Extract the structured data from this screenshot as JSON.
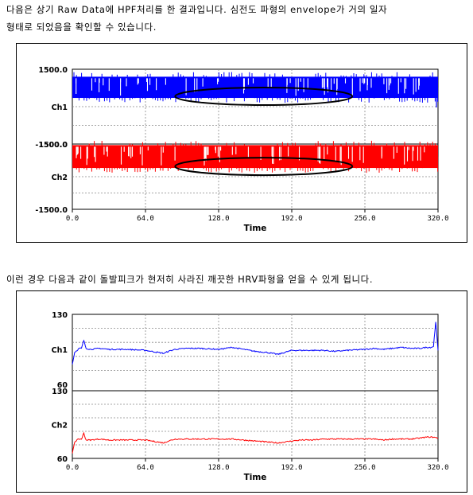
{
  "text": {
    "para1_line1": "다음은 상기 Raw Data에 HPF처리를 한 결과입니다. 심전도 파형의 envelope가 거의 일자",
    "para1_line2": "형태로 되었음을 확인할 수 있습니다.",
    "para2": "이런 경우 다음과 같이 돌발피크가 현저히 사라진 깨끗한 HRV파형을 얻을 수 있게 됩니다."
  },
  "chart_data": [
    {
      "type": "line",
      "xlabel": "Time",
      "xlim": [
        0,
        320
      ],
      "x_ticks": [
        "0.0",
        "64.0",
        "128.0",
        "192.0",
        "256.0",
        "320.0"
      ],
      "channels": [
        {
          "name": "Ch1",
          "color": "#0000ff",
          "ymax_label": "1500.0",
          "ymin_label": "-1500.0",
          "ylim": [
            -1500,
            1500
          ],
          "band": [
            350,
            1200
          ]
        },
        {
          "name": "Ch2",
          "color": "#ff0000",
          "ymax_label": "1500.0",
          "ymin_label": "-1500.0",
          "ylim": [
            -1500,
            1500
          ],
          "band": [
            400,
            1450
          ]
        }
      ],
      "annotations": "black ellipses around central section of each channel, x approx 90 to 245"
    },
    {
      "type": "line",
      "xlabel": "Time",
      "xlim": [
        0,
        320
      ],
      "x_ticks": [
        "0.0",
        "64.0",
        "128.0",
        "192.0",
        "256.0",
        "320.0"
      ],
      "channels": [
        {
          "name": "Ch1",
          "color": "#0000ff",
          "ymax_label": "130",
          "ymin_label": "60",
          "ylim": [
            60,
            130
          ],
          "x": [
            0,
            2,
            4,
            6,
            8,
            10,
            12,
            16,
            24,
            32,
            48,
            64,
            80,
            84,
            90,
            100,
            112,
            128,
            140,
            150,
            160,
            170,
            180,
            192,
            200,
            210,
            220,
            230,
            240,
            256,
            264,
            272,
            280,
            288,
            296,
            304,
            310,
            314,
            316,
            318,
            320
          ],
          "y": [
            80,
            92,
            94,
            96,
            96,
            104,
            96,
            95,
            96,
            95,
            95,
            94,
            91,
            93,
            95,
            96,
            96,
            95,
            97,
            95,
            93,
            92,
            90,
            94,
            94,
            94,
            94,
            93,
            94,
            95,
            96,
            95,
            96,
            97,
            96,
            96,
            97,
            97,
            98,
            123,
            94
          ]
        },
        {
          "name": "Ch2",
          "color": "#ff0000",
          "ymax_label": "130",
          "ymin_label": "60",
          "ylim": [
            60,
            130
          ],
          "x": [
            0,
            2,
            4,
            6,
            8,
            10,
            12,
            16,
            24,
            32,
            48,
            64,
            80,
            84,
            90,
            100,
            112,
            128,
            140,
            150,
            160,
            170,
            180,
            192,
            200,
            210,
            220,
            230,
            240,
            256,
            264,
            272,
            280,
            288,
            296,
            304,
            310,
            316,
            320
          ],
          "y": [
            65,
            77,
            79,
            80,
            80,
            86,
            79,
            79,
            80,
            79,
            79,
            79,
            76,
            78,
            80,
            80,
            80,
            80,
            80,
            79,
            78,
            77,
            76,
            78,
            79,
            79,
            80,
            80,
            80,
            80,
            80,
            79,
            80,
            80,
            80,
            81,
            82,
            82,
            81
          ]
        }
      ]
    }
  ]
}
